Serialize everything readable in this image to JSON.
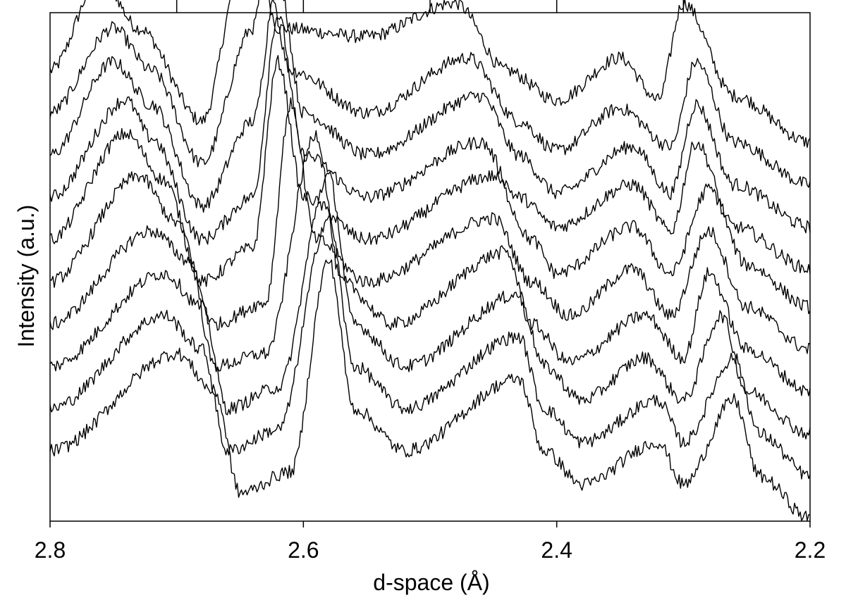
{
  "chart_data": {
    "type": "line",
    "title": "",
    "xlabel": "d-space (Å)",
    "ylabel": "Intensity (a.u.)",
    "xlim": [
      2.8,
      2.2
    ],
    "x_reversed": true,
    "x_ticks": [
      2.8,
      2.6,
      2.4,
      2.2
    ],
    "x_tick_labels": [
      "2.8",
      "2.6",
      "2.4",
      "2.2"
    ],
    "top_minor_ticks": [
      2.7,
      2.6,
      2.5,
      2.4,
      2.3
    ],
    "y_tick_labels": false,
    "grid": false,
    "legend": "none",
    "offset_stacked": true,
    "line_color": "#000000",
    "series": [
      {
        "x": [
          2.8,
          2.76,
          2.73,
          2.68,
          2.65,
          2.64,
          2.62,
          2.55,
          2.48,
          2.44,
          2.4,
          2.35,
          2.32,
          2.3,
          2.26,
          2.2
        ],
        "values": [
          0.5,
          0.72,
          0.6,
          0.38,
          0.72,
          0.85,
          0.6,
          0.58,
          0.66,
          0.5,
          0.43,
          0.53,
          0.43,
          0.66,
          0.44,
          0.33
        ]
      },
      {
        "x": [
          2.8,
          2.75,
          2.72,
          2.68,
          2.64,
          2.63,
          2.61,
          2.55,
          2.47,
          2.43,
          2.4,
          2.35,
          2.31,
          2.29,
          2.26,
          2.2
        ],
        "values": [
          0.4,
          0.6,
          0.5,
          0.28,
          0.6,
          0.74,
          0.5,
          0.4,
          0.53,
          0.38,
          0.31,
          0.41,
          0.32,
          0.52,
          0.33,
          0.23
        ]
      },
      {
        "x": [
          2.8,
          2.75,
          2.72,
          2.68,
          2.64,
          2.62,
          2.6,
          2.55,
          2.46,
          2.43,
          2.4,
          2.34,
          2.31,
          2.29,
          2.26,
          2.2
        ],
        "values": [
          0.3,
          0.52,
          0.42,
          0.18,
          0.38,
          0.72,
          0.4,
          0.3,
          0.44,
          0.3,
          0.21,
          0.32,
          0.21,
          0.42,
          0.23,
          0.13
        ]
      },
      {
        "x": [
          2.8,
          2.74,
          2.72,
          2.68,
          2.64,
          2.62,
          2.6,
          2.55,
          2.46,
          2.43,
          2.4,
          2.34,
          2.31,
          2.29,
          2.26,
          2.2
        ],
        "values": [
          0.2,
          0.43,
          0.34,
          0.1,
          0.2,
          0.63,
          0.3,
          0.2,
          0.33,
          0.2,
          0.13,
          0.23,
          0.12,
          0.33,
          0.13,
          0.03
        ]
      },
      {
        "x": [
          2.8,
          2.74,
          2.71,
          2.68,
          2.64,
          2.62,
          2.6,
          2.55,
          2.45,
          2.42,
          2.4,
          2.34,
          2.31,
          2.28,
          2.25,
          2.2
        ],
        "values": [
          0.1,
          0.35,
          0.24,
          0.0,
          0.08,
          0.52,
          0.2,
          0.1,
          0.25,
          0.1,
          0.02,
          0.13,
          0.02,
          0.22,
          0.04,
          -0.06
        ]
      },
      {
        "x": [
          2.8,
          2.73,
          2.7,
          2.67,
          2.63,
          2.61,
          2.59,
          2.55,
          2.45,
          2.42,
          2.39,
          2.34,
          2.31,
          2.28,
          2.25,
          2.2
        ],
        "values": [
          0.0,
          0.25,
          0.14,
          -0.1,
          -0.05,
          0.42,
          0.1,
          0.0,
          0.15,
          0.0,
          -0.08,
          0.03,
          -0.08,
          0.12,
          -0.06,
          -0.16
        ]
      },
      {
        "x": [
          2.8,
          2.72,
          2.69,
          2.67,
          2.63,
          2.59,
          2.57,
          2.53,
          2.44,
          2.42,
          2.39,
          2.33,
          2.3,
          2.28,
          2.25,
          2.2
        ],
        "values": [
          -0.1,
          0.12,
          0.05,
          -0.2,
          -0.17,
          0.35,
          0.0,
          -0.1,
          0.07,
          -0.1,
          -0.19,
          -0.08,
          -0.18,
          0.02,
          -0.16,
          -0.26
        ]
      },
      {
        "x": [
          2.8,
          2.71,
          2.68,
          2.66,
          2.62,
          2.58,
          2.56,
          2.52,
          2.43,
          2.41,
          2.38,
          2.33,
          2.3,
          2.27,
          2.25,
          2.2
        ],
        "values": [
          -0.2,
          0.02,
          -0.06,
          -0.3,
          -0.25,
          0.25,
          -0.1,
          -0.2,
          -0.03,
          -0.2,
          -0.28,
          -0.18,
          -0.28,
          -0.08,
          -0.26,
          -0.36
        ]
      },
      {
        "x": [
          2.8,
          2.71,
          2.68,
          2.66,
          2.62,
          2.58,
          2.56,
          2.52,
          2.43,
          2.41,
          2.38,
          2.32,
          2.3,
          2.26,
          2.24,
          2.2
        ],
        "values": [
          -0.3,
          -0.08,
          -0.16,
          -0.4,
          -0.35,
          0.15,
          -0.2,
          -0.3,
          -0.13,
          -0.3,
          -0.38,
          -0.28,
          -0.38,
          -0.18,
          -0.36,
          -0.46
        ]
      },
      {
        "x": [
          2.8,
          2.7,
          2.67,
          2.65,
          2.61,
          2.58,
          2.56,
          2.52,
          2.43,
          2.41,
          2.38,
          2.32,
          2.3,
          2.26,
          2.24,
          2.2
        ],
        "values": [
          -0.4,
          -0.17,
          -0.26,
          -0.5,
          -0.45,
          0.05,
          -0.3,
          -0.4,
          -0.23,
          -0.4,
          -0.48,
          -0.38,
          -0.48,
          -0.28,
          -0.46,
          -0.56
        ]
      }
    ]
  }
}
